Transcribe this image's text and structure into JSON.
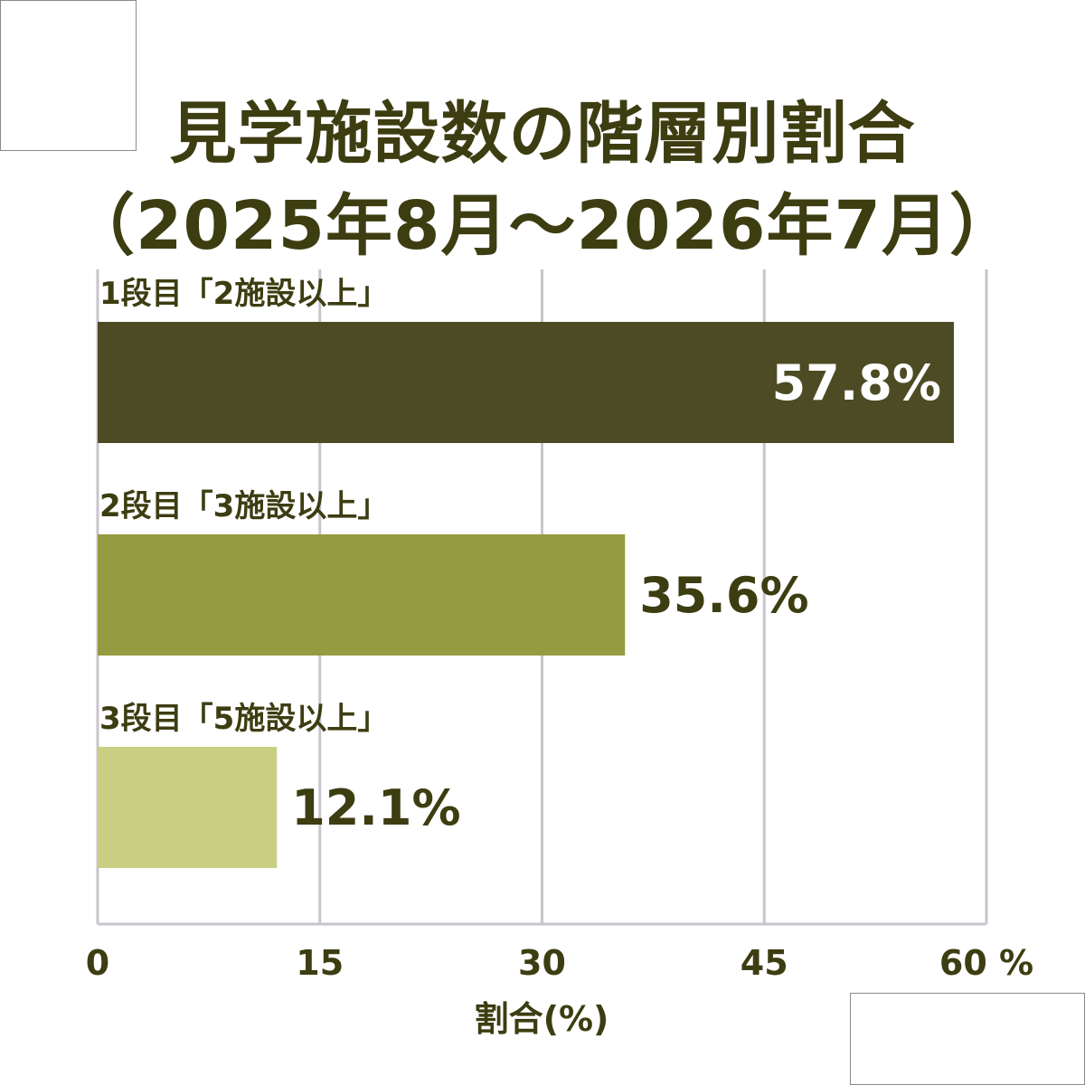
{
  "colors": {
    "text": "#3d3d12",
    "grid": "#c9c5cd",
    "bar_label_inside": "#ffffff"
  },
  "chart_data": {
    "type": "bar",
    "orientation": "horizontal",
    "title": "見学施設数の階層別割合",
    "subtitle": "（2025年8月～2026年7月）",
    "xlabel": "割合(%)",
    "xlim": [
      0,
      60
    ],
    "xticks": [
      0,
      15,
      30,
      45,
      60
    ],
    "xtick_labels": [
      "0",
      "15",
      "30",
      "45",
      "60 %"
    ],
    "grid": true,
    "categories": [
      "1段目「2施設以上」",
      "2段目「3施設以上」",
      "3段目「5施設以上」"
    ],
    "values": [
      57.8,
      35.6,
      12.1
    ],
    "data_labels": [
      "57.8%",
      "35.6%",
      "12.1%"
    ],
    "bar_colors": [
      "#4d4b24",
      "#959b40",
      "#c8ce82"
    ]
  }
}
